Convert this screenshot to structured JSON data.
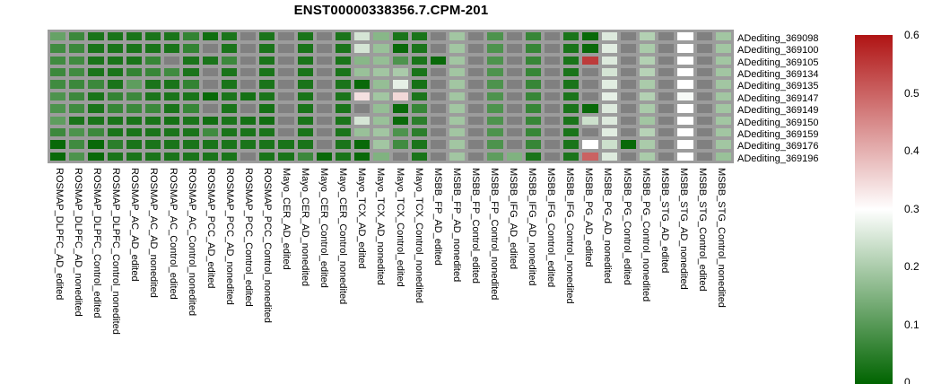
{
  "title": "ENST00000338356.7.CPM-201",
  "chart_data": {
    "type": "heatmap",
    "title": "ENST00000338356.7.CPM-201",
    "legend_position": "right",
    "na_color": "#808080",
    "gap_color": "#9c9c9c",
    "colormap": {
      "low": "#006400",
      "mid": "#ffffff",
      "high": "#b01414",
      "low_value": 0,
      "mid_value": 0.3,
      "high_value": 0.6
    },
    "colorbar_ticks": [
      "0.6",
      "0.5",
      "0.4",
      "0.3",
      "0.2",
      "0.1",
      "0"
    ],
    "rows": [
      "ADediting_369098",
      "ADediting_369100",
      "ADediting_369105",
      "ADediting_369134",
      "ADediting_369135",
      "ADediting_369147",
      "ADediting_369149",
      "ADediting_369150",
      "ADediting_369159",
      "ADediting_369176",
      "ADediting_369196"
    ],
    "columns": [
      "ROSMAP_DLPFC_AD_edited",
      "ROSMAP_DLPFC_AD_nonedited",
      "ROSMAP_DLPFC_Control_edited",
      "ROSMAP_DLPFC_Control_nonedited",
      "ROSMAP_AC_AD_edited",
      "ROSMAP_AC_AD_nonedited",
      "ROSMAP_AC_Control_edited",
      "ROSMAP_AC_Control_nonedited",
      "ROSMAP_PCC_AD_edited",
      "ROSMAP_PCC_AD_nonedited",
      "ROSMAP_PCC_Control_edited",
      "ROSMAP_PCC_Control_nonedited",
      "Mayo_CER_AD_edited",
      "Mayo_CER_AD_nonedited",
      "Mayo_CER_Control_edited",
      "Mayo_CER_Control_nonedited",
      "Mayo_TCX_AD_edited",
      "Mayo_TCX_AD_nonedited",
      "Mayo_TCX_Control_edited",
      "Mayo_TCX_Control_nonedited",
      "MSBB_FP_AD_edited",
      "MSBB_FP_AD_nonedited",
      "MSBB_FP_Control_edited",
      "MSBB_FP_Control_nonedited",
      "MSBB_IFG_AD_edited",
      "MSBB_IFG_AD_nonedited",
      "MSBB_IFG_Control_edited",
      "MSBB_IFG_Control_nonedited",
      "MSBB_PG_AD_edited",
      "MSBB_PG_AD_nonedited",
      "MSBB_PG_Control_edited",
      "MSBB_PG_Control_nonedited",
      "MSBB_STG_AD_edited",
      "MSBB_STG_AD_nonedited",
      "MSBB_STG_Control_edited",
      "MSBB_STG_Control_nonedited"
    ],
    "values": [
      [
        0.12,
        0.07,
        0.03,
        0.03,
        0.03,
        0.03,
        0.03,
        0.06,
        0.02,
        0.03,
        null,
        0.03,
        null,
        0.03,
        null,
        0.03,
        0.25,
        0.16,
        0.03,
        0.03,
        null,
        0.19,
        null,
        0.09,
        null,
        0.065,
        null,
        0.03,
        0.01,
        0.26,
        null,
        0.21,
        null,
        0.3,
        null,
        0.19
      ],
      [
        0.075,
        0.07,
        0.03,
        0.03,
        0.03,
        0.03,
        0.03,
        0.06,
        null,
        0.03,
        null,
        0.03,
        null,
        0.03,
        null,
        0.03,
        0.25,
        0.18,
        0.01,
        0.03,
        null,
        0.19,
        null,
        0.09,
        null,
        0.065,
        null,
        0.03,
        0.01,
        0.265,
        null,
        0.2,
        null,
        0.3,
        null,
        0.19
      ],
      [
        0.075,
        0.075,
        0.03,
        0.03,
        0.03,
        0.065,
        null,
        0.03,
        0.03,
        0.07,
        null,
        0.03,
        null,
        0.03,
        null,
        0.03,
        0.16,
        0.175,
        0.09,
        0.03,
        0.01,
        0.19,
        null,
        0.09,
        null,
        0.065,
        null,
        0.03,
        0.55,
        0.26,
        null,
        0.21,
        null,
        0.3,
        null,
        0.19
      ],
      [
        0.07,
        0.075,
        0.03,
        0.03,
        0.06,
        0.065,
        0.075,
        0.03,
        null,
        0.03,
        null,
        0.03,
        null,
        0.03,
        null,
        0.03,
        0.18,
        0.19,
        0.2,
        0.03,
        null,
        0.19,
        null,
        0.09,
        null,
        0.065,
        null,
        0.03,
        null,
        0.25,
        null,
        0.215,
        null,
        0.3,
        null,
        0.19
      ],
      [
        0.075,
        0.07,
        0.07,
        0.03,
        0.11,
        0.03,
        0.03,
        0.06,
        null,
        0.03,
        null,
        0.03,
        null,
        0.03,
        null,
        0.03,
        0.01,
        0.175,
        0.27,
        0.025,
        null,
        0.19,
        null,
        0.09,
        null,
        0.065,
        null,
        0.03,
        null,
        0.265,
        null,
        0.2,
        null,
        0.3,
        null,
        0.19
      ],
      [
        0.09,
        0.07,
        0.03,
        0.06,
        0.07,
        0.03,
        0.03,
        0.03,
        0.01,
        0.03,
        0.025,
        0.03,
        null,
        0.03,
        null,
        0.03,
        0.34,
        0.19,
        0.35,
        0.03,
        null,
        0.19,
        null,
        0.09,
        null,
        0.065,
        null,
        0.03,
        null,
        0.27,
        null,
        0.21,
        null,
        0.29,
        null,
        0.19
      ],
      [
        0.09,
        0.075,
        0.03,
        0.065,
        0.07,
        0.07,
        0.03,
        0.065,
        null,
        0.03,
        null,
        0.025,
        null,
        0.03,
        null,
        0.03,
        null,
        0.175,
        0.01,
        0.065,
        null,
        0.19,
        null,
        0.09,
        null,
        0.065,
        null,
        0.03,
        0.01,
        0.26,
        null,
        0.2,
        null,
        0.3,
        null,
        0.19
      ],
      [
        0.11,
        0.03,
        0.03,
        0.03,
        0.03,
        0.03,
        0.025,
        0.03,
        0.02,
        0.03,
        0.025,
        0.02,
        null,
        0.03,
        null,
        0.03,
        0.25,
        0.18,
        0.01,
        0.05,
        null,
        0.19,
        null,
        0.09,
        null,
        0.065,
        null,
        0.03,
        0.24,
        0.26,
        null,
        0.19,
        null,
        0.3,
        null,
        0.19
      ],
      [
        0.07,
        0.09,
        0.07,
        0.03,
        0.03,
        0.03,
        0.03,
        0.03,
        0.075,
        0.03,
        0.03,
        0.03,
        null,
        0.03,
        null,
        0.03,
        0.18,
        0.19,
        0.09,
        0.05,
        null,
        0.19,
        null,
        0.09,
        null,
        0.065,
        null,
        0.03,
        null,
        0.265,
        null,
        0.215,
        null,
        0.3,
        null,
        0.19
      ],
      [
        0.01,
        0.075,
        0.01,
        0.05,
        0.03,
        0.03,
        0.03,
        0.03,
        0.03,
        0.03,
        0.03,
        0.03,
        0.03,
        0.03,
        null,
        0.03,
        0.01,
        0.19,
        0.075,
        0.03,
        null,
        0.19,
        null,
        0.09,
        null,
        0.065,
        null,
        0.03,
        0.3,
        0.24,
        0.01,
        0.2,
        null,
        0.3,
        null,
        0.19
      ],
      [
        0.01,
        0.09,
        0.01,
        0.03,
        0.03,
        0.03,
        0.03,
        0.03,
        0.03,
        0.03,
        null,
        0.03,
        0.03,
        0.07,
        0.01,
        0.03,
        0.01,
        0.15,
        null,
        0.03,
        null,
        0.19,
        null,
        0.11,
        0.15,
        0.03,
        null,
        0.03,
        0.5,
        0.26,
        null,
        0.2,
        null,
        0.3,
        null,
        0.18
      ]
    ]
  }
}
